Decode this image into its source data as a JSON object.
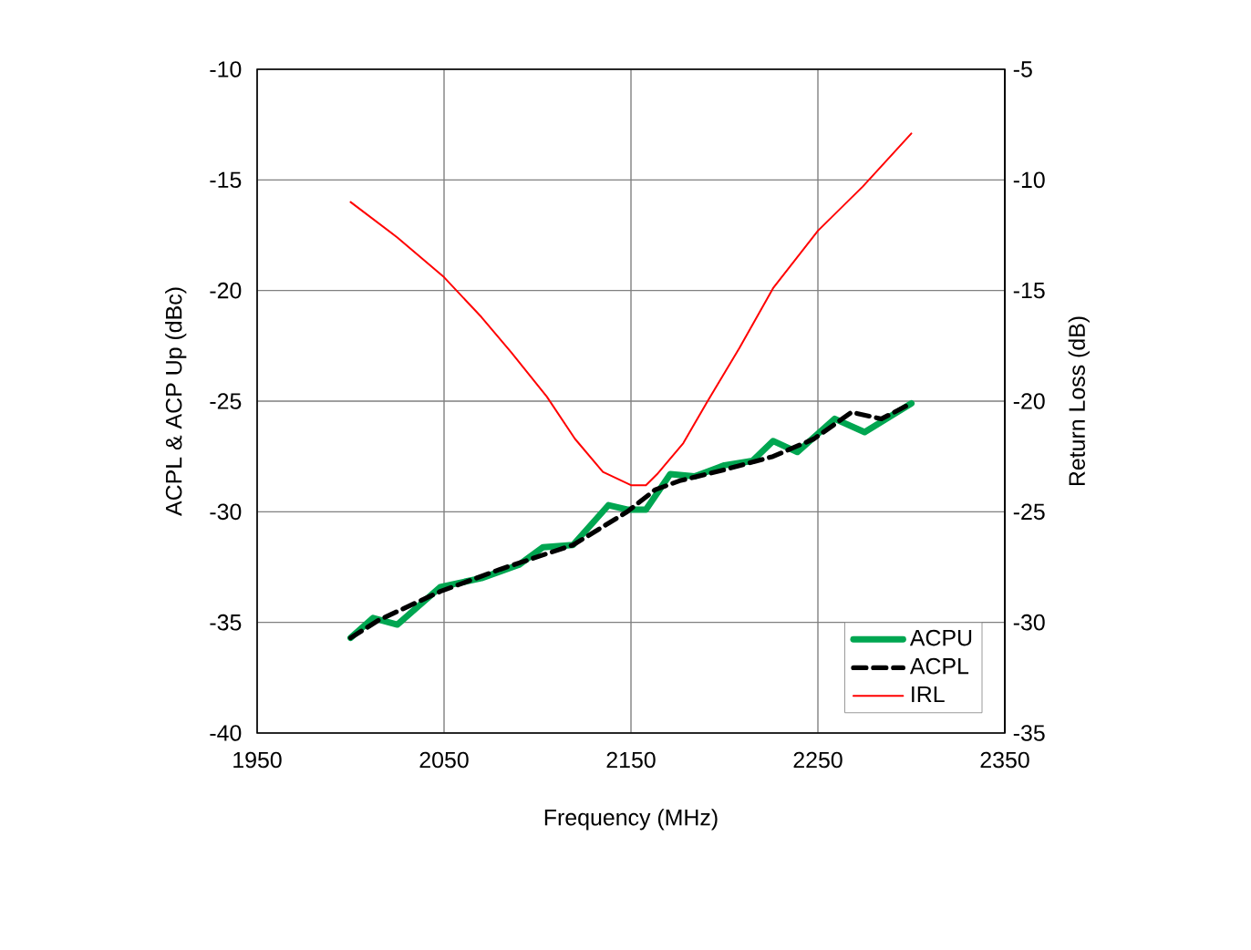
{
  "chart_data": {
    "type": "line",
    "xlabel": "Frequency (MHz)",
    "ylabel": "ACPL & ACP Up (dBc)",
    "y2label": "Return Loss (dB)",
    "xlim": [
      1950,
      2350
    ],
    "xticks": [
      1950,
      2050,
      2150,
      2250,
      2350
    ],
    "ylim": [
      -40,
      -10
    ],
    "yticks": [
      -40,
      -35,
      -30,
      -25,
      -20,
      -15,
      -10
    ],
    "y2lim": [
      -35,
      -5
    ],
    "y2ticks": [
      -35,
      -30,
      -25,
      -20,
      -15,
      -10,
      -5
    ],
    "grid": true,
    "legend": "bottom right",
    "marker": "none",
    "series": [
      {
        "name": "ACPU",
        "color": "#00a651",
        "line_style": "solid",
        "x": [
          2000,
          2012,
          2025,
          2048,
          2070,
          2090,
          2103,
          2119,
          2138,
          2148,
          2158,
          2171,
          2184,
          2200,
          2215,
          2226,
          2239,
          2259,
          2275,
          2300
        ],
        "values": [
          -35.7,
          -34.8,
          -35.1,
          -33.4,
          -33.0,
          -32.4,
          -31.6,
          -31.5,
          -29.7,
          -29.9,
          -29.9,
          -28.3,
          -28.4,
          -27.9,
          -27.7,
          -26.8,
          -27.3,
          -25.8,
          -26.4,
          -25.1
        ]
      },
      {
        "name": "ACPL",
        "color": "#000000",
        "line_style": "dashed",
        "x": [
          2000,
          2015,
          2048,
          2080,
          2119,
          2148,
          2163,
          2176,
          2200,
          2226,
          2248,
          2268,
          2284,
          2300
        ],
        "values": [
          -35.7,
          -34.9,
          -33.6,
          -32.6,
          -31.5,
          -30.0,
          -29.0,
          -28.6,
          -28.1,
          -27.5,
          -26.7,
          -25.5,
          -25.8,
          -25.1
        ]
      },
      {
        "name": "IRL",
        "color": "#ff0000",
        "line_style": "solid",
        "axis": "y2",
        "x": [
          2000,
          2025,
          2050,
          2070,
          2086,
          2105,
          2120,
          2135,
          2150,
          2158,
          2164,
          2178,
          2191,
          2208,
          2226,
          2250,
          2274,
          2300
        ],
        "values": [
          -11.0,
          -12.6,
          -14.4,
          -16.2,
          -17.8,
          -19.8,
          -21.7,
          -23.2,
          -23.8,
          -23.8,
          -23.3,
          -21.9,
          -20.0,
          -17.6,
          -14.9,
          -12.3,
          -10.3,
          -7.9
        ]
      }
    ]
  }
}
